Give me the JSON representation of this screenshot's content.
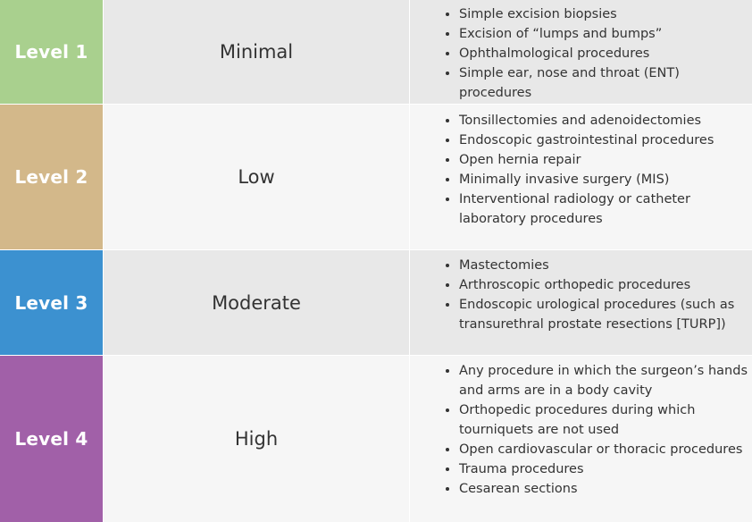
{
  "colors": {
    "level1": "#a9d08e",
    "level2": "#d3b88a",
    "level3": "#3c91d0",
    "level4": "#a160a8",
    "row_gray": "#e8e8e8",
    "row_light": "#f6f6f6"
  },
  "rows": [
    {
      "level": "Level 1",
      "risk": "Minimal",
      "procedures": [
        "Simple excision biopsies",
        "Excision of “lumps and bumps”",
        "Ophthalmological procedures",
        "Simple ear, nose and throat (ENT) procedures"
      ]
    },
    {
      "level": "Level 2",
      "risk": "Low",
      "procedures": [
        "Tonsillectomies and adenoidectomies",
        "Endoscopic gastrointestinal procedures",
        "Open hernia repair",
        "Minimally invasive surgery (MIS)",
        "Interventional radiology or catheter laboratory procedures"
      ]
    },
    {
      "level": "Level 3",
      "risk": "Moderate",
      "procedures": [
        "Mastectomies",
        "Arthroscopic orthopedic procedures",
        "Endoscopic urological procedures (such as transurethral prostate resections [TURP])"
      ]
    },
    {
      "level": "Level 4",
      "risk": "High",
      "procedures": [
        "Any procedure in which the surgeon’s hands and arms are in a body cavity",
        "Orthopedic procedures during which tourniquets are not used",
        "Open cardiovascular or thoracic procedures",
        "Trauma procedures",
        "Cesarean sections"
      ]
    }
  ]
}
